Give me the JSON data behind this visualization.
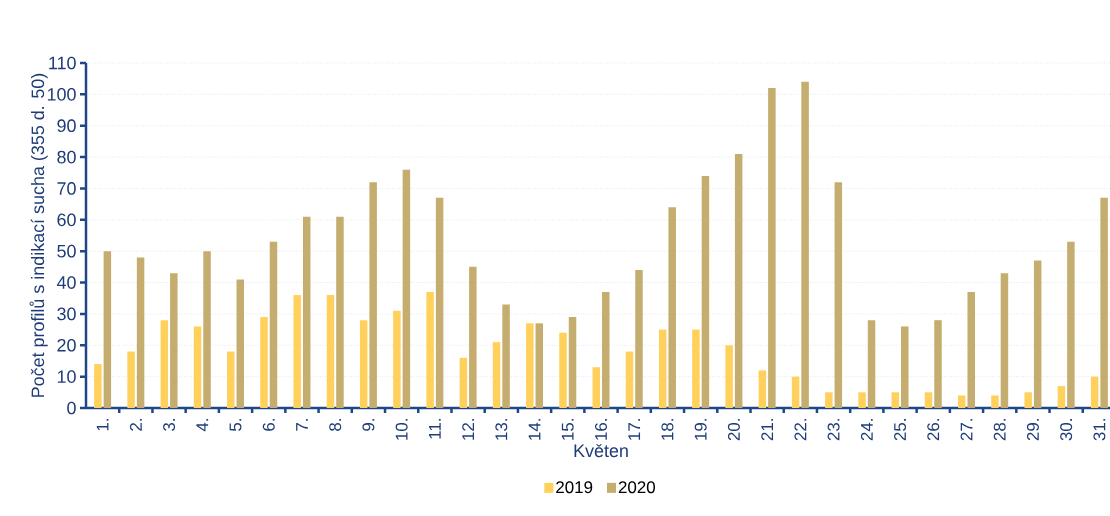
{
  "chart_data": {
    "type": "bar",
    "xlabel": "Květen",
    "ylabel": "Počet profilů s indikací sucha (355 d. 50)",
    "categories": [
      "1.",
      "2.",
      "3.",
      "4.",
      "5.",
      "6.",
      "7.",
      "8.",
      "9.",
      "10.",
      "11.",
      "12.",
      "13.",
      "14.",
      "15.",
      "16.",
      "17.",
      "18.",
      "19.",
      "20.",
      "21.",
      "22.",
      "23.",
      "24.",
      "25.",
      "26.",
      "27.",
      "28.",
      "29.",
      "30.",
      "31."
    ],
    "series": [
      {
        "name": "2019",
        "color": "#ffd15c",
        "values": [
          14,
          18,
          28,
          26,
          18,
          29,
          36,
          36,
          28,
          31,
          37,
          16,
          21,
          27,
          24,
          13,
          18,
          25,
          25,
          20,
          12,
          10,
          5,
          5,
          5,
          5,
          4,
          4,
          5,
          7,
          10
        ]
      },
      {
        "name": "2020",
        "color": "#c4ad6e",
        "values": [
          50,
          48,
          43,
          50,
          41,
          53,
          61,
          61,
          72,
          76,
          67,
          45,
          33,
          27,
          29,
          37,
          44,
          64,
          74,
          81,
          102,
          104,
          72,
          28,
          26,
          28,
          37,
          43,
          47,
          53,
          67
        ]
      }
    ],
    "ylim": [
      0,
      110
    ],
    "yticks": [
      0,
      10,
      20,
      30,
      40,
      50,
      60,
      70,
      80,
      90,
      100,
      110
    ],
    "grid": "y",
    "legend": "bottom"
  }
}
